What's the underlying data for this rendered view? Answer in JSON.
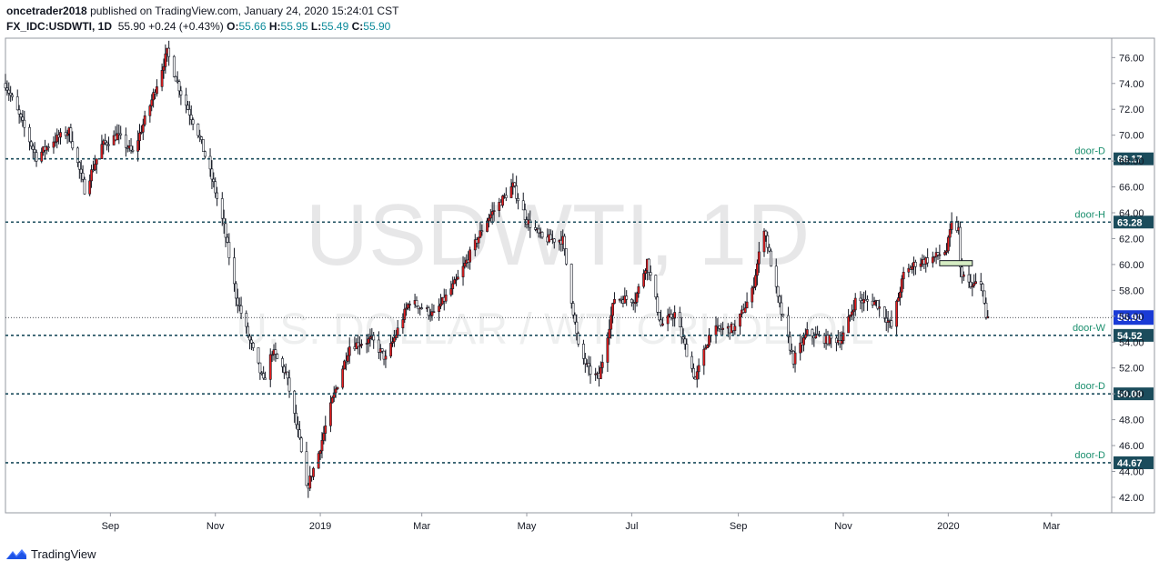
{
  "header": {
    "author": "oncetrader2018",
    "published_text": "published on TradingView.com, January 24, 2020 15:24:01 CST",
    "symbol": "FX_IDC:USDWTI, 1D",
    "last": "55.90",
    "change": "+0.24 (+0.43%)",
    "open_label": "O:",
    "open": "55.66",
    "high_label": "H:",
    "high": "55.95",
    "low_label": "L:",
    "low": "55.49",
    "close_label": "C:",
    "close": "55.90"
  },
  "brand": {
    "name": "TradingView",
    "icon": "tradingview-logo-icon"
  },
  "chart_data": {
    "type": "candlestick",
    "watermark": {
      "main": "USDWTI, 1D",
      "sub": "U.S. DOLLAR / WTI CRUDE OIL"
    },
    "y_ticks": [
      42.0,
      44.0,
      46.0,
      48.0,
      50.0,
      52.0,
      54.0,
      56.0,
      58.0,
      60.0,
      62.0,
      64.0,
      66.0,
      68.0,
      70.0,
      72.0,
      74.0,
      76.0
    ],
    "ylim": [
      40.8,
      77.5
    ],
    "x_ticks": [
      {
        "label": "Sep",
        "date": "2018-09-01"
      },
      {
        "label": "Nov",
        "date": "2018-11-01"
      },
      {
        "label": "2019",
        "date": "2019-01-01"
      },
      {
        "label": "Mar",
        "date": "2019-03-01"
      },
      {
        "label": "May",
        "date": "2019-05-01"
      },
      {
        "label": "Jul",
        "date": "2019-07-01"
      },
      {
        "label": "Sep",
        "date": "2019-09-01"
      },
      {
        "label": "Nov",
        "date": "2019-11-01"
      },
      {
        "label": "2020",
        "date": "2020-01-01"
      },
      {
        "label": "Mar",
        "date": "2020-03-01"
      }
    ],
    "xlim": [
      "2018-07-02",
      "2020-04-05"
    ],
    "levels": [
      {
        "name": "door-D",
        "price": 68.17,
        "label": "68.17"
      },
      {
        "name": "door-H",
        "price": 63.28,
        "label": "63.28"
      },
      {
        "name": "door-W",
        "price": 54.52,
        "label": "54.52"
      },
      {
        "name": "door-D",
        "price": 50.0,
        "label": "50.00"
      },
      {
        "name": "door-D",
        "price": 44.67,
        "label": "44.67"
      }
    ],
    "last_price": {
      "price": 55.9,
      "label": "55.90"
    },
    "zone": {
      "start": "2019-12-27",
      "end": "2020-01-15",
      "low": 59.9,
      "high": 60.3
    },
    "path": [
      [
        "2018-07-02",
        74.0
      ],
      [
        "2018-07-10",
        71.5
      ],
      [
        "2018-07-20",
        68.3
      ],
      [
        "2018-07-30",
        69.6
      ],
      [
        "2018-08-08",
        70.3
      ],
      [
        "2018-08-17",
        65.8
      ],
      [
        "2018-08-27",
        69.2
      ],
      [
        "2018-09-05",
        70.0
      ],
      [
        "2018-09-14",
        68.6
      ],
      [
        "2018-09-24",
        72.3
      ],
      [
        "2018-10-01",
        75.2
      ],
      [
        "2018-10-04",
        76.4
      ],
      [
        "2018-10-12",
        73.3
      ],
      [
        "2018-10-22",
        70.2
      ],
      [
        "2018-10-31",
        66.2
      ],
      [
        "2018-11-06",
        62.9
      ],
      [
        "2018-11-13",
        57.6
      ],
      [
        "2018-11-20",
        54.5
      ],
      [
        "2018-11-29",
        50.9
      ],
      [
        "2018-12-04",
        53.3
      ],
      [
        "2018-12-12",
        51.6
      ],
      [
        "2018-12-20",
        46.3
      ],
      [
        "2018-12-24",
        42.6
      ],
      [
        "2018-12-31",
        45.4
      ],
      [
        "2019-01-08",
        49.5
      ],
      [
        "2019-01-18",
        53.7
      ],
      [
        "2019-01-31",
        54.2
      ],
      [
        "2019-02-08",
        52.7
      ],
      [
        "2019-02-22",
        57.2
      ],
      [
        "2019-03-08",
        56.1
      ],
      [
        "2019-03-22",
        58.9
      ],
      [
        "2019-04-08",
        63.5
      ],
      [
        "2019-04-23",
        66.1
      ],
      [
        "2019-05-01",
        63.4
      ],
      [
        "2019-05-10",
        62.0
      ],
      [
        "2019-05-22",
        61.9
      ],
      [
        "2019-05-31",
        53.6
      ],
      [
        "2019-06-06",
        51.8
      ],
      [
        "2019-06-12",
        51.2
      ],
      [
        "2019-06-21",
        57.4
      ],
      [
        "2019-07-03",
        57.3
      ],
      [
        "2019-07-10",
        60.3
      ],
      [
        "2019-07-18",
        55.3
      ],
      [
        "2019-07-26",
        56.2
      ],
      [
        "2019-08-07",
        51.1
      ],
      [
        "2019-08-16",
        54.9
      ],
      [
        "2019-08-30",
        55.1
      ],
      [
        "2019-09-09",
        57.9
      ],
      [
        "2019-09-16",
        62.9
      ],
      [
        "2019-09-24",
        57.3
      ],
      [
        "2019-10-03",
        52.6
      ],
      [
        "2019-10-11",
        54.7
      ],
      [
        "2019-10-22",
        54.2
      ],
      [
        "2019-10-31",
        54.2
      ],
      [
        "2019-11-08",
        57.2
      ],
      [
        "2019-11-20",
        57.1
      ],
      [
        "2019-11-29",
        55.2
      ],
      [
        "2019-12-06",
        59.2
      ],
      [
        "2019-12-13",
        60.1
      ],
      [
        "2019-12-23",
        60.5
      ],
      [
        "2019-12-31",
        61.1
      ],
      [
        "2020-01-03",
        63.1
      ],
      [
        "2020-01-07",
        62.7
      ],
      [
        "2020-01-08",
        59.6
      ],
      [
        "2020-01-14",
        58.2
      ],
      [
        "2020-01-17",
        58.5
      ],
      [
        "2020-01-21",
        58.3
      ],
      [
        "2020-01-23",
        55.6
      ],
      [
        "2020-01-24",
        55.9
      ]
    ]
  }
}
